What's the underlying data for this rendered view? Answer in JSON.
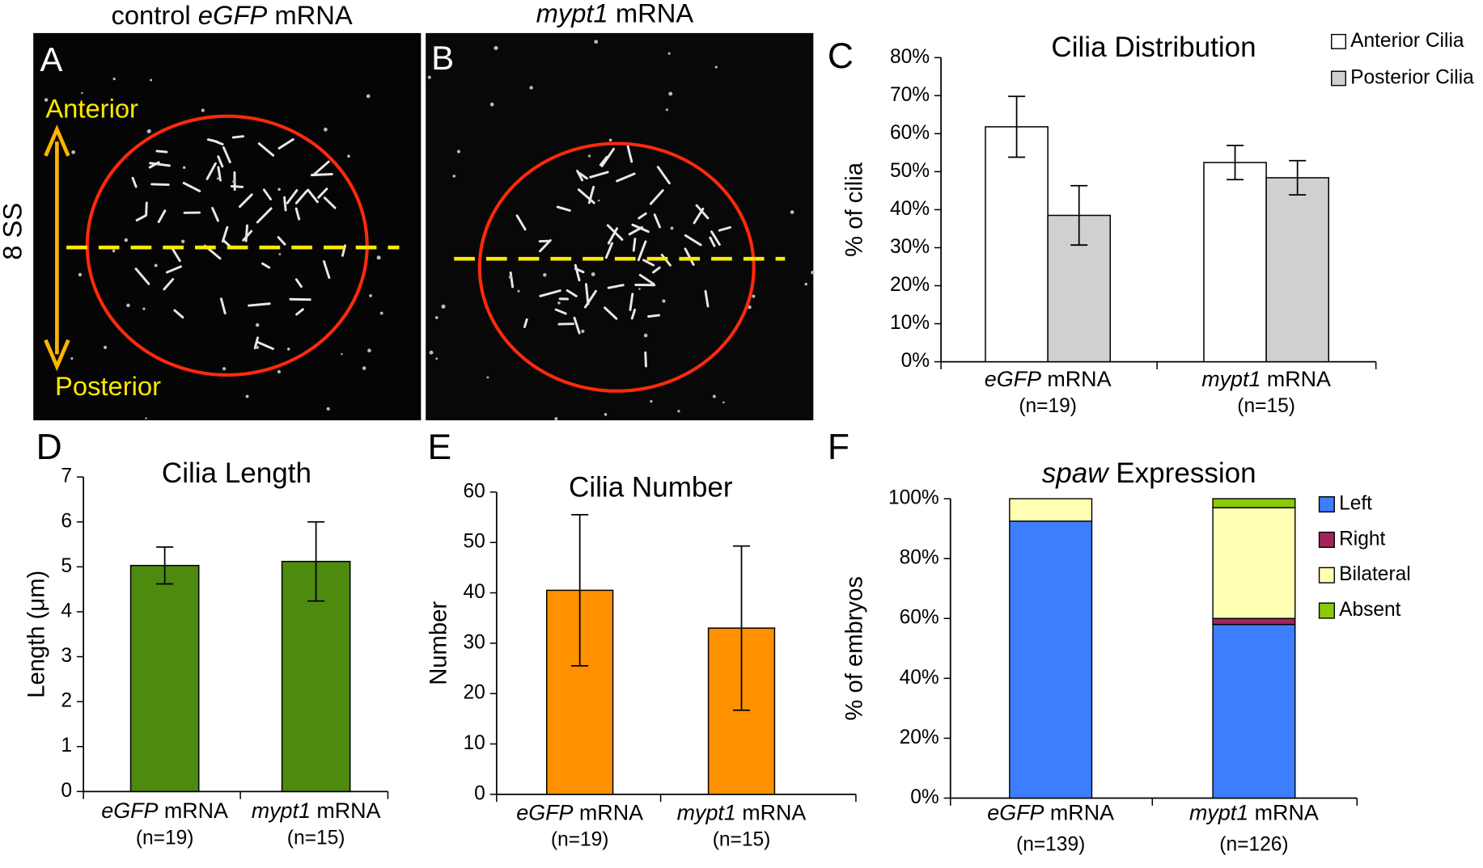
{
  "images": {
    "a_heading": "control eGFP mRNA",
    "b_heading": "mypt1 mRNA",
    "a_label": "A",
    "b_label": "B",
    "anterior": "Anterior",
    "posterior": "Posterior",
    "stage": "8 SS"
  },
  "panel_labels": [
    "C",
    "D",
    "E",
    "F"
  ],
  "chart_data": [
    {
      "type": "bar",
      "title": "Cilia Distribution",
      "y_label": "% of cilia",
      "categories": [
        "eGFP mRNA",
        "mypt1 mRNA"
      ],
      "category_notes": [
        "(n=19)",
        "(n=15)"
      ],
      "series": [
        {
          "name": "Anterior Cilia",
          "color": "#ffffff",
          "values": [
            61.8,
            52.4
          ],
          "errors": [
            8,
            4.5
          ]
        },
        {
          "name": "Posterior Cilia",
          "color": "#d0d0d0",
          "values": [
            38.5,
            48.4
          ],
          "errors": [
            7.8,
            4.5
          ]
        }
      ],
      "ylim": [
        0,
        80
      ],
      "yticks": [
        {
          "value": 0,
          "label": "0%"
        },
        {
          "value": 10,
          "label": "10%"
        },
        {
          "value": 20,
          "label": "20%"
        },
        {
          "value": 30,
          "label": "30%"
        },
        {
          "value": 40,
          "label": "40%"
        },
        {
          "value": 50,
          "label": "50%"
        },
        {
          "value": 60,
          "label": "60%"
        },
        {
          "value": 70,
          "label": "70%"
        },
        {
          "value": 80,
          "label": "80%"
        }
      ],
      "legend": "top-right"
    },
    {
      "type": "bar",
      "title": "Cilia Length",
      "y_label": "Length (μm)",
      "categories": [
        "eGFP mRNA",
        "mypt1 mRNA"
      ],
      "category_notes": [
        "(n=19)",
        "(n=15)"
      ],
      "values": [
        5.03,
        5.12
      ],
      "errors": [
        0.41,
        0.88
      ],
      "color": "#4e8a0e",
      "ylim": [
        0,
        7
      ],
      "yticks": [
        0,
        1,
        2,
        3,
        4,
        5,
        6,
        7
      ]
    },
    {
      "type": "bar",
      "title": "Cilia Number",
      "y_label": "Number",
      "categories": [
        "eGFP mRNA",
        "mypt1 mRNA"
      ],
      "category_notes": [
        "(n=19)",
        "(n=15)"
      ],
      "values": [
        40.5,
        33
      ],
      "errors": [
        15,
        16.3
      ],
      "color": "#ff9100",
      "ylim": [
        0,
        60
      ],
      "yticks": [
        0,
        10,
        20,
        30,
        40,
        50,
        60
      ]
    },
    {
      "type": "bar",
      "stacked": true,
      "title": "spaw Expression",
      "title_italic_lead": true,
      "y_label": "% of embryos",
      "categories": [
        "eGFP mRNA",
        "mypt1 mRNA"
      ],
      "category_notes": [
        "(n=139)",
        "(n=126)"
      ],
      "series": [
        {
          "name": "Left",
          "color": "#3d7eff",
          "values": [
            92.5,
            58
          ]
        },
        {
          "name": "Right",
          "color": "#a3245c",
          "values": [
            0,
            2
          ]
        },
        {
          "name": "Bilateral",
          "color": "#ffffb3",
          "values": [
            7.5,
            37
          ]
        },
        {
          "name": "Absent",
          "color": "#8cc90a",
          "values": [
            0,
            3
          ]
        }
      ],
      "ylim": [
        0,
        100
      ],
      "yticks": [
        {
          "value": 0,
          "label": "0%"
        },
        {
          "value": 20,
          "label": "20%"
        },
        {
          "value": 40,
          "label": "40%"
        },
        {
          "value": 60,
          "label": "60%"
        },
        {
          "value": 80,
          "label": "80%"
        },
        {
          "value": 100,
          "label": "100%"
        }
      ],
      "legend": "right"
    }
  ]
}
